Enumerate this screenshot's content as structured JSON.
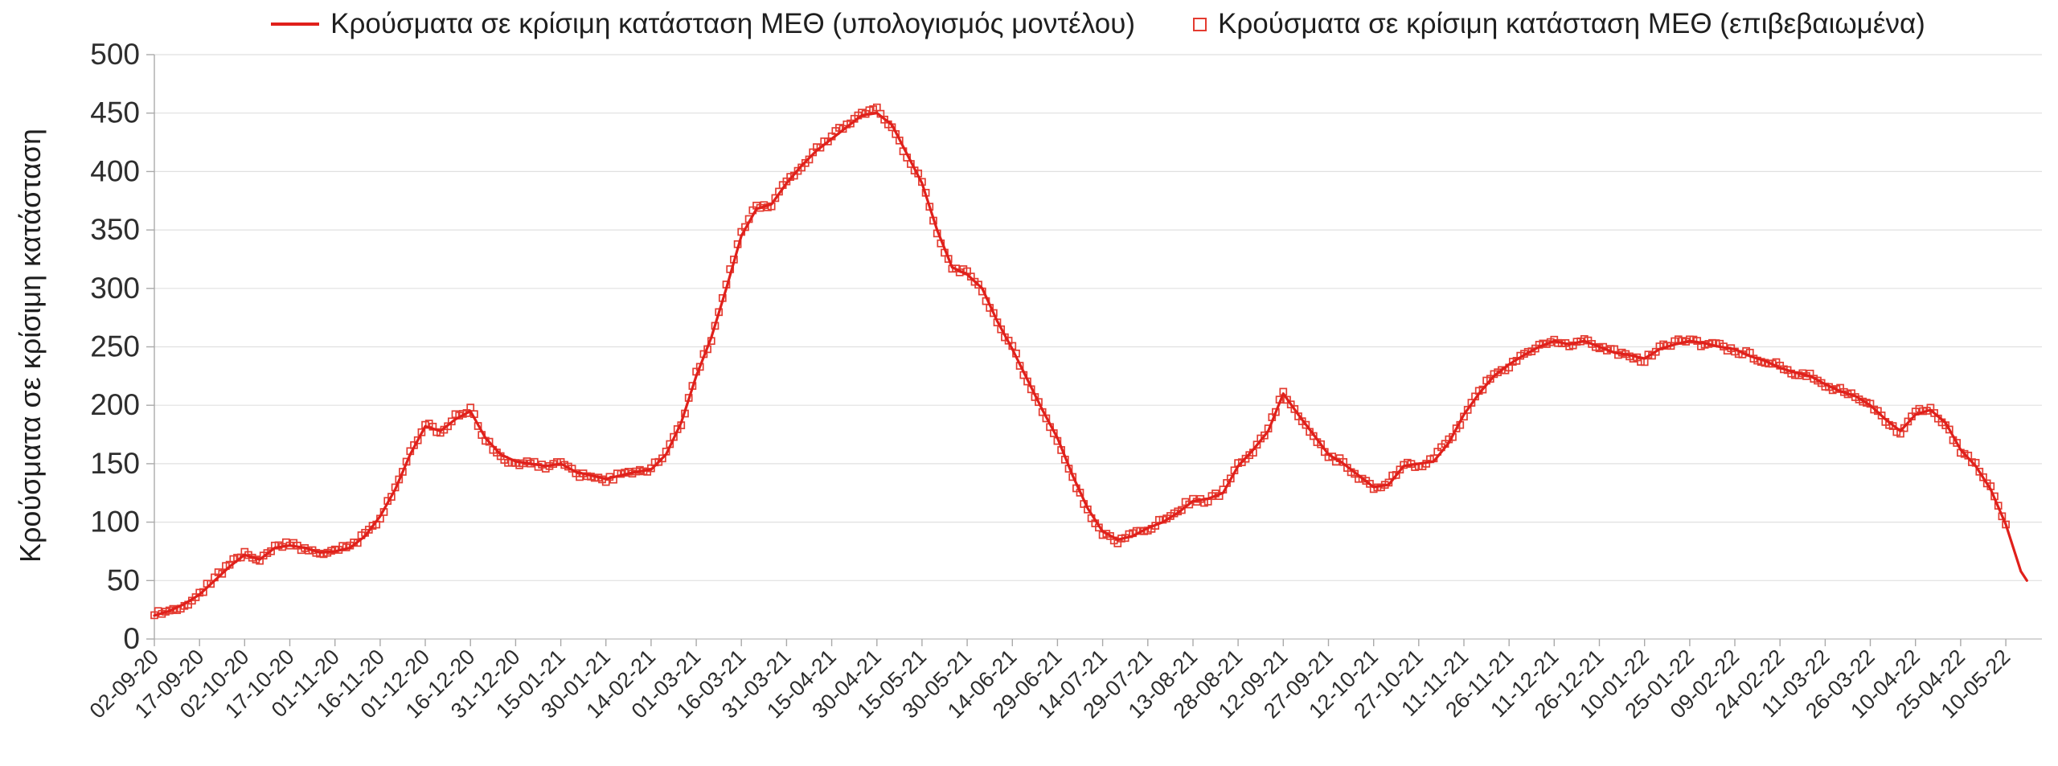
{
  "legend": {
    "model_label": "Κρούσματα σε κρίσιμη κατάσταση ΜΕΘ (υπολογισμός μοντέλου)",
    "confirmed_label": "Κρούσματα σε κρίσιμη κατάσταση ΜΕΘ (επιβεβαιωμένα)"
  },
  "axes": {
    "y_title": "Κρούσματα σε κρίσιμη κατάσταση",
    "y_ticks": [
      0,
      50,
      100,
      150,
      200,
      250,
      300,
      350,
      400,
      450,
      500
    ],
    "x_tick_step_days": 15,
    "x_tick_labels": [
      "02-09-20",
      "17-09-20",
      "02-10-20",
      "17-10-20",
      "01-11-20",
      "16-11-20",
      "01-12-20",
      "16-12-20",
      "31-12-20",
      "15-01-21",
      "30-01-21",
      "14-02-21",
      "01-03-21",
      "16-03-21",
      "31-03-21",
      "15-04-21",
      "30-04-21",
      "15-05-21",
      "30-05-21",
      "14-06-21",
      "29-06-21",
      "14-07-21",
      "29-07-21",
      "13-08-21",
      "28-08-21",
      "12-09-21",
      "27-09-21",
      "12-10-21",
      "27-10-21",
      "11-11-21",
      "26-11-21",
      "11-12-21",
      "26-12-21",
      "10-01-22",
      "25-01-22",
      "09-02-22",
      "24-02-22",
      "11-03-22",
      "26-03-22",
      "10-04-22",
      "25-04-22",
      "10-05-22"
    ]
  },
  "colors": {
    "series_red": "#e0201b",
    "marker_red": "#e43b30",
    "grid": "#e0e0e0",
    "axis": "#aaaaaa",
    "text": "#2e2e2e",
    "background": "#ffffff"
  },
  "chart_data": {
    "type": "line",
    "title": "",
    "xlabel": "",
    "ylabel": "Κρούσματα σε κρίσιμη κατάσταση",
    "x_unit": "days since 02-09-2020",
    "xlim_days": [
      0,
      627
    ],
    "ylim": [
      0,
      500
    ],
    "grid": "horizontal",
    "legend_position": "top-center",
    "series": [
      {
        "name": "Κρούσματα σε κρίσιμη κατάσταση ΜΕΘ (υπολογισμός μοντέλου)",
        "style": "line",
        "x": [
          0,
          5,
          10,
          15,
          20,
          25,
          30,
          35,
          40,
          45,
          50,
          55,
          60,
          65,
          70,
          75,
          80,
          85,
          90,
          95,
          100,
          105,
          110,
          115,
          120,
          125,
          130,
          135,
          140,
          145,
          150,
          155,
          160,
          165,
          170,
          175,
          180,
          185,
          190,
          195,
          200,
          205,
          210,
          215,
          220,
          225,
          230,
          235,
          240,
          245,
          250,
          255,
          260,
          265,
          270,
          275,
          280,
          285,
          290,
          295,
          300,
          305,
          310,
          315,
          320,
          325,
          330,
          335,
          340,
          345,
          350,
          355,
          360,
          365,
          370,
          375,
          380,
          385,
          390,
          395,
          400,
          405,
          410,
          415,
          420,
          425,
          430,
          435,
          440,
          445,
          450,
          455,
          460,
          465,
          470,
          475,
          480,
          485,
          490,
          495,
          500,
          505,
          510,
          515,
          520,
          525,
          530,
          535,
          540,
          545,
          550,
          555,
          560,
          565,
          570,
          575,
          580,
          585,
          590,
          595,
          600,
          605,
          610,
          615,
          620,
          622
        ],
        "values": [
          20,
          24,
          30,
          38,
          50,
          62,
          72,
          68,
          78,
          80,
          78,
          74,
          75,
          78,
          88,
          105,
          128,
          158,
          182,
          178,
          188,
          195,
          172,
          158,
          152,
          150,
          148,
          150,
          143,
          140,
          137,
          140,
          143,
          145,
          158,
          185,
          225,
          258,
          300,
          345,
          368,
          372,
          390,
          405,
          418,
          428,
          438,
          448,
          450,
          440,
          415,
          390,
          350,
          318,
          312,
          300,
          272,
          248,
          222,
          196,
          172,
          140,
          112,
          92,
          85,
          88,
          95,
          100,
          108,
          118,
          120,
          125,
          148,
          162,
          178,
          210,
          192,
          175,
          158,
          150,
          140,
          130,
          132,
          148,
          150,
          152,
          168,
          192,
          210,
          225,
          235,
          243,
          250,
          255,
          252,
          255,
          250,
          245,
          243,
          240,
          248,
          252,
          255,
          253,
          250,
          248,
          242,
          238,
          232,
          228,
          225,
          218,
          212,
          208,
          200,
          188,
          178,
          192,
          196,
          185,
          162,
          148,
          128,
          98,
          58,
          50
        ]
      },
      {
        "name": "Κρούσματα σε κρίσιμη κατάσταση ΜΕΘ (επιβεβαιωμένα)",
        "style": "scatter-open-square",
        "x": [
          0,
          5,
          10,
          15,
          20,
          25,
          30,
          35,
          40,
          45,
          50,
          55,
          60,
          65,
          70,
          75,
          80,
          85,
          90,
          95,
          100,
          105,
          110,
          115,
          120,
          125,
          130,
          135,
          140,
          145,
          150,
          155,
          160,
          165,
          170,
          175,
          180,
          185,
          190,
          195,
          200,
          205,
          210,
          215,
          220,
          225,
          230,
          235,
          240,
          245,
          250,
          255,
          260,
          265,
          270,
          275,
          280,
          285,
          290,
          295,
          300,
          305,
          310,
          315,
          320,
          325,
          330,
          335,
          340,
          345,
          350,
          355,
          360,
          365,
          370,
          375,
          380,
          385,
          390,
          395,
          400,
          405,
          410,
          415,
          420,
          425,
          430,
          435,
          440,
          445,
          450,
          455,
          460,
          465,
          470,
          475,
          480,
          485,
          490,
          495,
          500,
          505,
          510,
          515,
          520,
          525,
          530,
          535,
          540,
          545,
          550,
          555,
          560,
          565,
          570,
          575,
          580,
          585,
          590,
          595,
          600,
          605,
          610,
          615
        ],
        "values": [
          21,
          25,
          29,
          39,
          52,
          64,
          74,
          66,
          79,
          81,
          77,
          73,
          76,
          79,
          90,
          103,
          130,
          160,
          184,
          176,
          192,
          197,
          170,
          156,
          150,
          151,
          146,
          152,
          141,
          139,
          135,
          141,
          144,
          146,
          160,
          183,
          228,
          255,
          303,
          348,
          370,
          370,
          392,
          403,
          420,
          430,
          440,
          450,
          455,
          438,
          412,
          392,
          348,
          316,
          314,
          298,
          270,
          250,
          220,
          194,
          170,
          138,
          110,
          90,
          82,
          90,
          93,
          102,
          110,
          120,
          118,
          127,
          150,
          160,
          180,
          212,
          190,
          173,
          156,
          152,
          138,
          128,
          134,
          150,
          148,
          154,
          170,
          190,
          212,
          227,
          233,
          245,
          252,
          257,
          250,
          257,
          248,
          247,
          241,
          238,
          250,
          254,
          257,
          251,
          252,
          246,
          244,
          236,
          234,
          226,
          227,
          216,
          214,
          206,
          202,
          186,
          176,
          194,
          198,
          183,
          160,
          150,
          130,
          98
        ]
      }
    ]
  }
}
